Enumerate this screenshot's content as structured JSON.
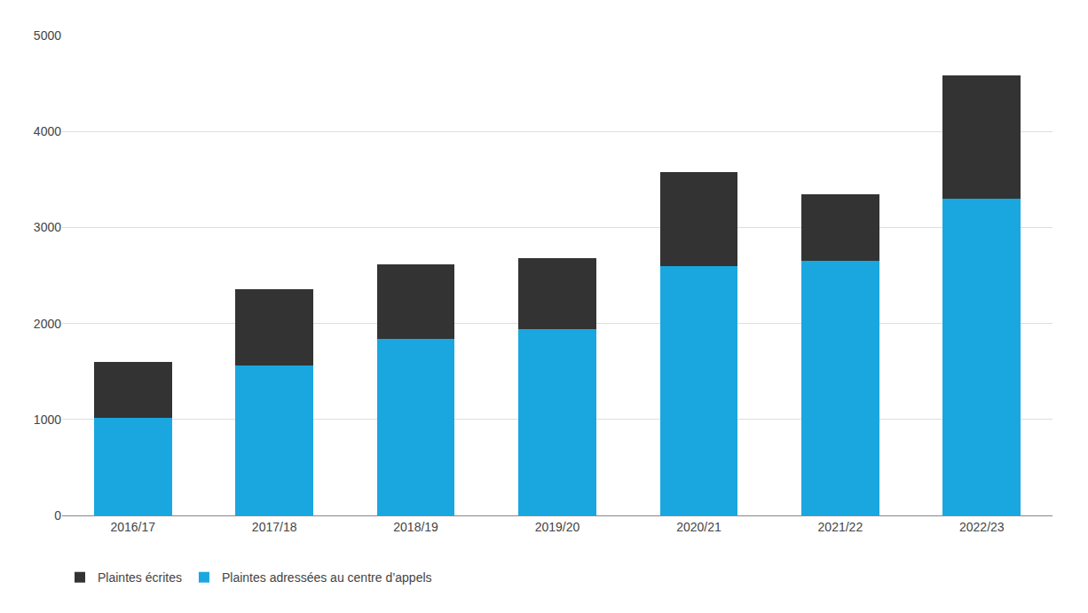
{
  "chart_data": {
    "type": "bar",
    "stacked": true,
    "categories": [
      "2016/17",
      "2017/18",
      "2018/19",
      "2019/20",
      "2020/21",
      "2021/22",
      "2022/23"
    ],
    "series": [
      {
        "name": "Plaintes adressées au centre d’appels",
        "color": "#1AA7E0",
        "values": [
          1020,
          1560,
          1840,
          1940,
          2600,
          2650,
          3300
        ]
      },
      {
        "name": "Plaintes écrites",
        "color": "#333333",
        "values": [
          580,
          800,
          780,
          740,
          980,
          700,
          1280
        ]
      }
    ],
    "ylim": [
      0,
      5000
    ],
    "yticks": [
      0,
      1000,
      2000,
      3000,
      4000,
      5000
    ],
    "grid": true,
    "legend": "bottom"
  }
}
